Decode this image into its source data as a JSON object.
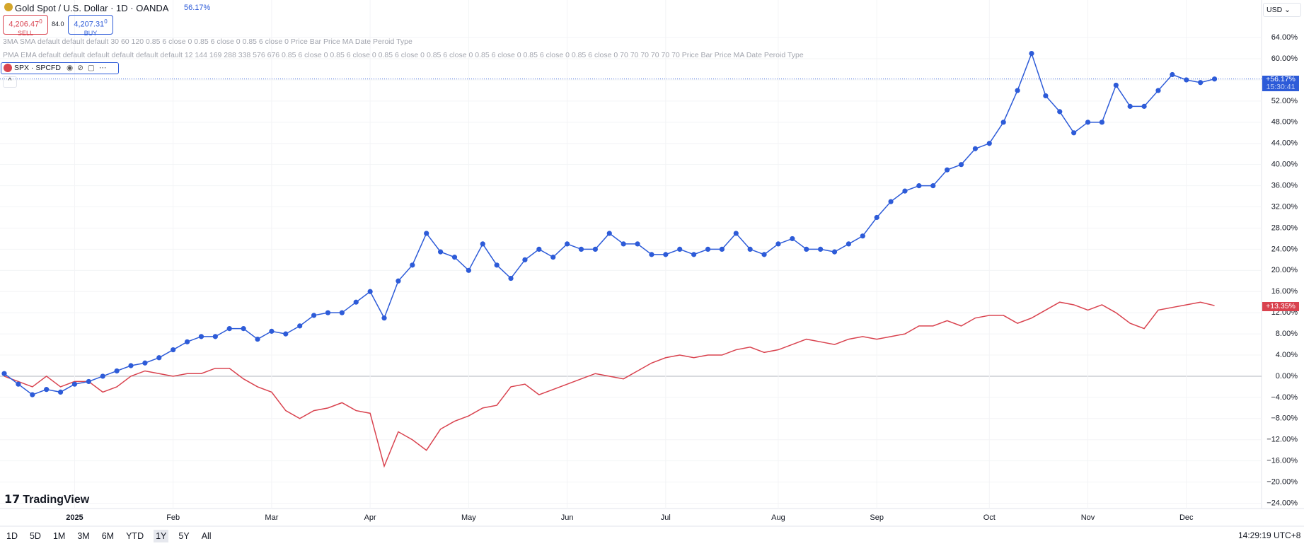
{
  "ui": {
    "symbol": "Gold Spot / U.S. Dollar · 1D · OANDA",
    "change": "56.17%",
    "sell_price": "4,206.47",
    "sell_sup": "0",
    "sell": "SELL",
    "spread": "84.0",
    "buy_price": "4,207.31",
    "buy_sup": "0",
    "buy": "BUY",
    "indicator_1": "3MA SMA default default default 30 60 120 0.85 6 close 0 0.85 6 close 0 0.85 6 close 0 Price Bar Price MA Date Peroid Type",
    "indicator_2": "PMA EMA default default default default default default 12 144 169 288 338 576 676 0.85 6 close 0 0.85 6 close 0 0.85 6 close 0 0.85 6 close 0 0.85 6 close 0 0.85 6 close 0 0.85 6 close 0 70 70 70 70 70 70 Price Bar Price MA Date Peroid Type",
    "compare": "SPX · SPCFD",
    "currency": "USD",
    "gold_tag": "+56.17%",
    "gold_time": "15:30:41",
    "spx_tag": "+13.35%",
    "logo": "TradingView",
    "ranges": [
      "1D",
      "5D",
      "1M",
      "3M",
      "6M",
      "YTD",
      "1Y",
      "5Y",
      "All"
    ],
    "clock": "14:29:19 UTC+8"
  },
  "chart_data": {
    "type": "line",
    "grid": true,
    "categories": [
      null,
      null,
      null,
      null,
      null,
      "2025",
      null,
      null,
      null,
      null,
      null,
      null,
      "Feb",
      null,
      null,
      null,
      null,
      null,
      null,
      "Mar",
      null,
      null,
      null,
      null,
      null,
      null,
      "Apr",
      null,
      null,
      null,
      null,
      null,
      null,
      "May",
      null,
      null,
      null,
      null,
      null,
      null,
      "Jun",
      null,
      null,
      null,
      null,
      null,
      null,
      "Jul",
      null,
      null,
      null,
      null,
      null,
      null,
      null,
      "Aug",
      null,
      null,
      null,
      null,
      null,
      null,
      "Sep",
      null,
      null,
      null,
      null,
      null,
      null,
      null,
      "Oct",
      null,
      null,
      null,
      null,
      null,
      null,
      "Nov",
      null,
      null,
      null,
      null,
      null,
      null,
      "Dec",
      null,
      null
    ],
    "ylim": [
      -25,
      71.1
    ],
    "yticks": [
      {
        "value": -24,
        "label": "−24.00%"
      },
      {
        "value": -20,
        "label": "−20.00%"
      },
      {
        "value": -16,
        "label": "−16.00%"
      },
      {
        "value": -12,
        "label": "−12.00%"
      },
      {
        "value": -8,
        "label": "−8.00%"
      },
      {
        "value": -4,
        "label": "−4.00%"
      },
      {
        "value": 0,
        "label": "0.00%"
      },
      {
        "value": 4,
        "label": "4.00%"
      },
      {
        "value": 8,
        "label": "8.00%"
      },
      {
        "value": 12,
        "label": "12.00%"
      },
      {
        "value": 16,
        "label": "16.00%"
      },
      {
        "value": 20,
        "label": "20.00%"
      },
      {
        "value": 24,
        "label": "24.00%"
      },
      {
        "value": 28,
        "label": "28.00%"
      },
      {
        "value": 32,
        "label": "32.00%"
      },
      {
        "value": 36,
        "label": "36.00%"
      },
      {
        "value": 40,
        "label": "40.00%"
      },
      {
        "value": 44,
        "label": "44.00%"
      },
      {
        "value": 48,
        "label": "48.00%"
      },
      {
        "value": 52,
        "label": "52.00%"
      },
      {
        "value": 56,
        "label": "56.00%"
      },
      {
        "value": 60,
        "label": "60.00%"
      },
      {
        "value": 64,
        "label": "64.00%"
      }
    ],
    "series": [
      {
        "color": "#2d5bd8",
        "markers": true,
        "values": [
          0.5,
          -1.5,
          -3.5,
          -2.5,
          -3,
          -1.5,
          -1,
          0,
          1,
          2,
          2.5,
          3.5,
          5,
          6.5,
          7.5,
          7.5,
          9,
          9,
          7,
          8.5,
          8,
          9.5,
          11.5,
          12,
          12,
          14,
          16,
          11,
          18,
          21,
          27,
          23.5,
          22.5,
          20,
          25,
          21,
          18.5,
          22,
          24,
          22.5,
          25,
          24,
          24,
          27,
          25,
          25,
          23,
          23,
          24,
          23,
          24,
          24,
          27,
          24,
          23,
          25,
          26,
          24,
          24,
          23.5,
          25,
          26.5,
          30,
          33,
          35,
          36,
          36,
          39,
          40,
          43,
          44,
          48,
          54,
          61,
          53,
          50,
          46,
          48,
          48,
          55,
          51,
          51,
          54,
          57,
          56,
          55.5,
          56.17
        ]
      },
      {
        "color": "#d9434f",
        "markers": false,
        "values": [
          0,
          -1,
          -2,
          0,
          -2,
          -1,
          -1,
          -3,
          -2,
          0,
          1,
          0.5,
          0,
          0.5,
          0.5,
          1.5,
          1.5,
          -0.5,
          -2,
          -3,
          -6.5,
          -8,
          -6.5,
          -6,
          -5,
          -6.5,
          -7,
          -17,
          -10.5,
          -12,
          -14,
          -10,
          -8.5,
          -7.5,
          -6,
          -5.5,
          -2,
          -1.5,
          -3.5,
          -2.5,
          -1.5,
          -0.5,
          0.5,
          0,
          -0.5,
          1,
          2.5,
          3.5,
          4,
          3.5,
          4,
          4,
          5,
          5.5,
          4.5,
          5,
          6,
          7,
          6.5,
          6,
          7,
          7.5,
          7,
          7.5,
          8,
          9.5,
          9.5,
          10.5,
          9.5,
          11,
          11.5,
          11.5,
          10,
          11,
          12.5,
          14,
          13.5,
          12.5,
          13.5,
          12,
          10,
          9,
          12.5,
          13,
          13.5,
          14,
          13.35
        ]
      }
    ]
  }
}
